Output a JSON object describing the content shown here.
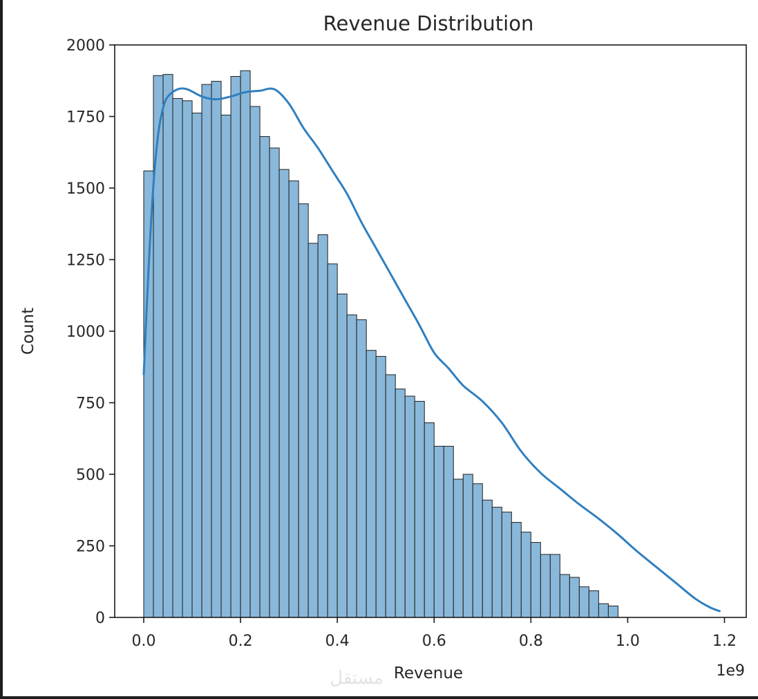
{
  "colors": {
    "bar_fill": "#8ab8da",
    "bar_edge": "#1f1f1f",
    "kde_line": "#2f7fc0",
    "axes": "#1a1a1a",
    "text": "#262626",
    "background": "#ffffff",
    "page_background": "#1e1e1e"
  },
  "watermark": "مستقل",
  "chart_data": {
    "type": "bar",
    "subtype": "histogram with kde line",
    "title": "Revenue Distribution",
    "xlabel": "Revenue",
    "ylabel": "Count",
    "x_offset_text": "1e9",
    "xlim": [
      -0.06,
      1.245
    ],
    "ylim": [
      0,
      2000
    ],
    "xticks": [
      0.0,
      0.2,
      0.4,
      0.6,
      0.8,
      1.0,
      1.2
    ],
    "xtick_labels": [
      "0.0",
      "0.2",
      "0.4",
      "0.6",
      "0.8",
      "1.0",
      "1.2"
    ],
    "yticks": [
      0,
      250,
      500,
      750,
      1000,
      1250,
      1500,
      1750,
      2000
    ],
    "ytick_labels": [
      "0",
      "250",
      "500",
      "750",
      "1000",
      "1250",
      "1500",
      "1750",
      "2000"
    ],
    "grid": false,
    "legend": "none",
    "bin_start": 0.0,
    "bin_width": 0.02,
    "counts": [
      1560,
      1893,
      1897,
      1813,
      1805,
      1762,
      1862,
      1873,
      1755,
      1890,
      1910,
      1785,
      1680,
      1640,
      1565,
      1525,
      1445,
      1307,
      1337,
      1235,
      1130,
      1057,
      1040,
      933,
      912,
      848,
      798,
      773,
      755,
      680,
      598,
      598,
      483,
      500,
      467,
      410,
      385,
      368,
      332,
      298,
      262,
      220,
      220,
      150,
      140,
      107,
      93,
      48,
      40
    ],
    "kde": {
      "x": [
        0.0,
        0.01,
        0.02,
        0.03,
        0.04,
        0.05,
        0.07,
        0.09,
        0.12,
        0.15,
        0.18,
        0.21,
        0.24,
        0.27,
        0.3,
        0.33,
        0.36,
        0.39,
        0.42,
        0.45,
        0.48,
        0.51,
        0.54,
        0.57,
        0.6,
        0.63,
        0.66,
        0.7,
        0.74,
        0.78,
        0.82,
        0.86,
        0.9,
        0.94,
        0.98,
        1.02,
        1.06,
        1.1,
        1.14,
        1.17,
        1.19
      ],
      "y": [
        850,
        1220,
        1510,
        1690,
        1780,
        1820,
        1845,
        1845,
        1820,
        1810,
        1820,
        1835,
        1840,
        1845,
        1795,
        1710,
        1640,
        1560,
        1480,
        1380,
        1290,
        1200,
        1110,
        1020,
        925,
        870,
        810,
        755,
        680,
        580,
        505,
        450,
        395,
        345,
        290,
        230,
        175,
        120,
        65,
        35,
        22
      ]
    }
  }
}
